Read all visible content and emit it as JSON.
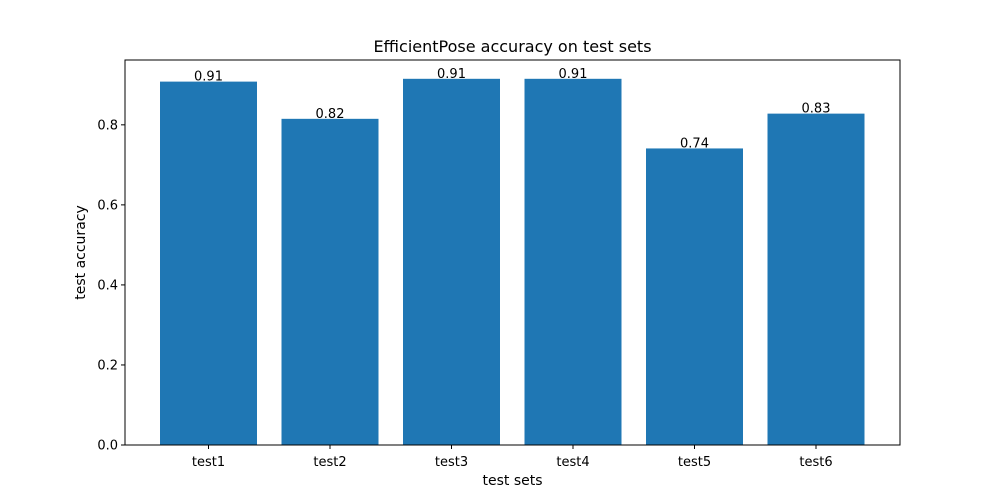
{
  "chart_data": {
    "type": "bar",
    "title": "EfficientPose accuracy on test sets",
    "xlabel": "test sets",
    "ylabel": "test accuracy",
    "categories": [
      "test1",
      "test2",
      "test3",
      "test4",
      "test5",
      "test6"
    ],
    "values": [
      0.908,
      0.815,
      0.915,
      0.915,
      0.741,
      0.828
    ],
    "data_labels": [
      "0.91",
      "0.82",
      "0.91",
      "0.91",
      "0.74",
      "0.83"
    ],
    "ylim": [
      0,
      0.962
    ],
    "yticks": [
      0.0,
      0.2,
      0.4,
      0.6,
      0.8
    ],
    "ytick_labels": [
      "0.0",
      "0.2",
      "0.4",
      "0.6",
      "0.8"
    ],
    "bar_color": "#1f77b4",
    "grid": false,
    "legend": "none"
  }
}
